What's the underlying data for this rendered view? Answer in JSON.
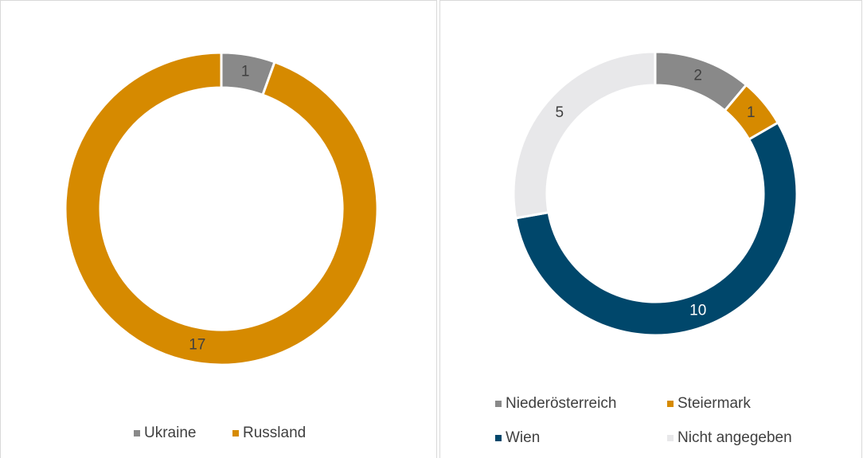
{
  "chart_data": [
    {
      "type": "donut",
      "categories": [
        "Ukraine",
        "Russland"
      ],
      "values": [
        1,
        17
      ],
      "colors": [
        "#898989",
        "#d68a00"
      ],
      "legend": "bottom"
    },
    {
      "type": "donut",
      "categories": [
        "Niederösterreich",
        "Steiermark",
        "Wien",
        "Nicht angegeben"
      ],
      "values": [
        2,
        1,
        10,
        5
      ],
      "colors": [
        "#898989",
        "#d68a00",
        "#00476b",
        "#e8e8ea"
      ],
      "legend": "bottom"
    }
  ]
}
